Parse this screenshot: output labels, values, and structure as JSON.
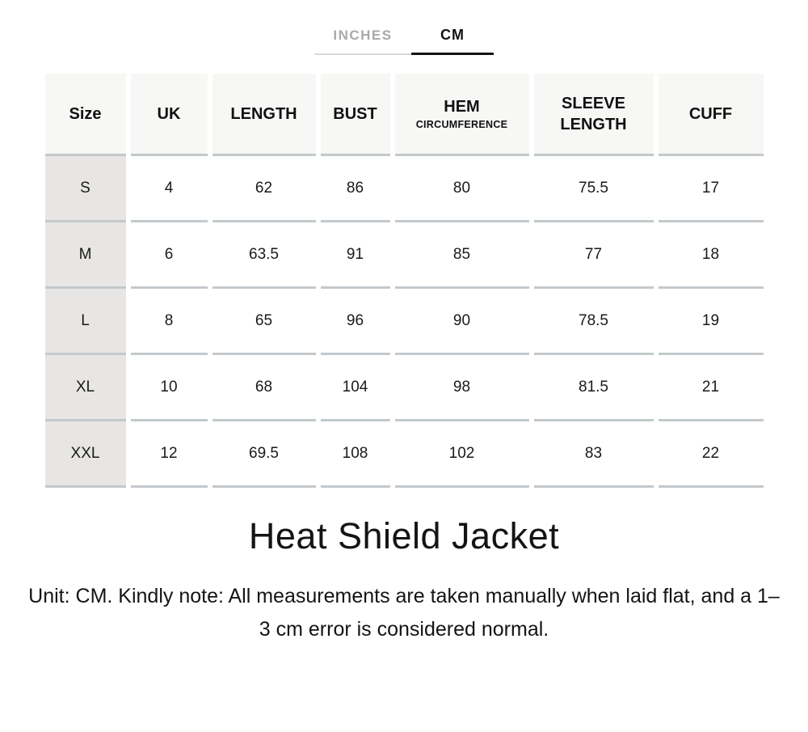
{
  "tabs": {
    "inches": "INCHES",
    "cm": "CM"
  },
  "table": {
    "columns": [
      {
        "label": "Size",
        "sub": ""
      },
      {
        "label": "UK",
        "sub": ""
      },
      {
        "label": "LENGTH",
        "sub": ""
      },
      {
        "label": "BUST",
        "sub": ""
      },
      {
        "label": "HEM",
        "sub": "CIRCUMFERENCE"
      },
      {
        "label": "SLEEVE LENGTH",
        "sub": ""
      },
      {
        "label": "CUFF",
        "sub": ""
      }
    ],
    "rows": [
      {
        "size": "S",
        "uk": "4",
        "length": "62",
        "bust": "86",
        "hem": "80",
        "sleeve": "75.5",
        "cuff": "17"
      },
      {
        "size": "M",
        "uk": "6",
        "length": "63.5",
        "bust": "91",
        "hem": "85",
        "sleeve": "77",
        "cuff": "18"
      },
      {
        "size": "L",
        "uk": "8",
        "length": "65",
        "bust": "96",
        "hem": "90",
        "sleeve": "78.5",
        "cuff": "19"
      },
      {
        "size": "XL",
        "uk": "10",
        "length": "68",
        "bust": "104",
        "hem": "98",
        "sleeve": "81.5",
        "cuff": "21"
      },
      {
        "size": "XXL",
        "uk": "12",
        "length": "69.5",
        "bust": "108",
        "hem": "102",
        "sleeve": "83",
        "cuff": "22"
      }
    ]
  },
  "product_title": "Heat Shield Jacket",
  "note": "Unit: CM. Kindly note: All measurements are taken manually when laid flat, and a 1–3 cm error is considered normal.",
  "colors": {
    "tab_active": "#141414",
    "tab_inactive_text": "#a9a9a9",
    "tab_inactive_underline": "#d9d9d9",
    "header_background": "#f7f7f5",
    "size_column_background": "#e7e6e4",
    "row_separator": "#c3c9cc"
  }
}
